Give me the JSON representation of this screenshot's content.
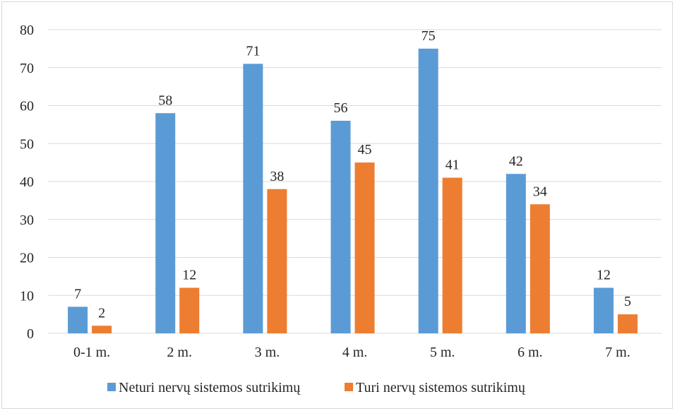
{
  "chart_data": {
    "type": "bar",
    "categories": [
      "0-1 m.",
      "2 m.",
      "3 m.",
      "4 m.",
      "5 m.",
      "6 m.",
      "7 m."
    ],
    "series": [
      {
        "name": "Neturi nervų sistemos sutrikimų",
        "color": "#5b9bd5",
        "values": [
          7,
          58,
          71,
          56,
          75,
          42,
          12
        ]
      },
      {
        "name": "Turi nervų sistemos sutrikimų",
        "color": "#ed7d31",
        "values": [
          2,
          12,
          38,
          45,
          41,
          34,
          5
        ]
      }
    ],
    "yticks": [
      0,
      10,
      20,
      30,
      40,
      50,
      60,
      70,
      80
    ],
    "ylim": [
      0,
      80
    ],
    "grid": true,
    "data_labels": true,
    "legend_position": "bottom",
    "title": "",
    "xlabel": "",
    "ylabel": ""
  }
}
